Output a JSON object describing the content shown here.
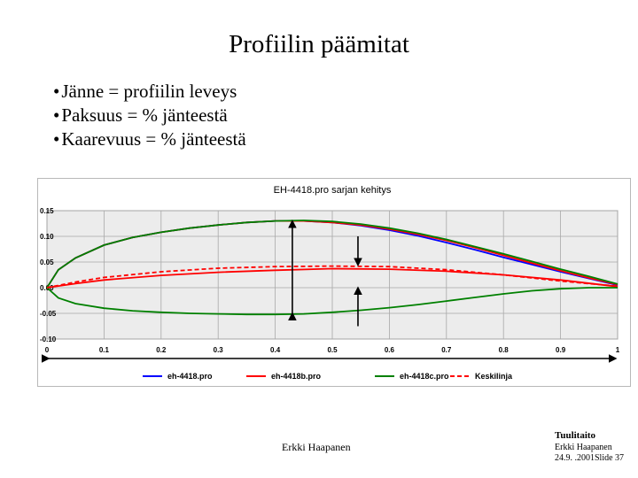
{
  "slide": {
    "title": "Profiilin päämitat",
    "bullets": [
      "Jänne = profiilin leveys",
      "Paksuus = % jänteestä",
      "Kaarevuus = % jänteestä"
    ]
  },
  "chart_data": {
    "type": "line",
    "title": "EH-4418.pro sarjan kehitys",
    "xlabel": "",
    "ylabel": "",
    "xlim": [
      0,
      1
    ],
    "ylim": [
      -0.1,
      0.15
    ],
    "x_ticks": [
      "0",
      "0.1",
      "0.2",
      "0.3",
      "0.4",
      "0.5",
      "0.6",
      "0.7",
      "0.8",
      "0.9",
      "1"
    ],
    "y_ticks": [
      "0.15",
      "0.10",
      "0.05",
      "0.00",
      "-0.05",
      "-0.10"
    ],
    "grid": true,
    "legend_position": "bottom",
    "series": [
      {
        "name": "eh-4418.pro",
        "color": "#0000ff",
        "style": "solid",
        "upper": [
          [
            0,
            0
          ],
          [
            0.02,
            0.035
          ],
          [
            0.05,
            0.058
          ],
          [
            0.1,
            0.083
          ],
          [
            0.15,
            0.098
          ],
          [
            0.2,
            0.108
          ],
          [
            0.25,
            0.116
          ],
          [
            0.3,
            0.122
          ],
          [
            0.35,
            0.127
          ],
          [
            0.4,
            0.13
          ],
          [
            0.45,
            0.13
          ],
          [
            0.5,
            0.127
          ],
          [
            0.55,
            0.121
          ],
          [
            0.6,
            0.112
          ],
          [
            0.65,
            0.101
          ],
          [
            0.7,
            0.088
          ],
          [
            0.75,
            0.074
          ],
          [
            0.8,
            0.059
          ],
          [
            0.85,
            0.045
          ],
          [
            0.9,
            0.031
          ],
          [
            0.95,
            0.018
          ],
          [
            1,
            0.005
          ]
        ]
      },
      {
        "name": "eh-4418b.pro",
        "color": "#ff0000",
        "style": "solid",
        "upper": [
          [
            0,
            0
          ],
          [
            0.02,
            0.035
          ],
          [
            0.05,
            0.058
          ],
          [
            0.1,
            0.083
          ],
          [
            0.15,
            0.098
          ],
          [
            0.2,
            0.108
          ],
          [
            0.25,
            0.116
          ],
          [
            0.3,
            0.122
          ],
          [
            0.35,
            0.127
          ],
          [
            0.4,
            0.13
          ],
          [
            0.45,
            0.13
          ],
          [
            0.5,
            0.127
          ],
          [
            0.55,
            0.122
          ],
          [
            0.6,
            0.114
          ],
          [
            0.65,
            0.104
          ],
          [
            0.7,
            0.092
          ],
          [
            0.75,
            0.078
          ],
          [
            0.8,
            0.063
          ],
          [
            0.85,
            0.048
          ],
          [
            0.9,
            0.033
          ],
          [
            0.95,
            0.019
          ],
          [
            1,
            0.006
          ]
        ],
        "camber": [
          [
            0,
            0
          ],
          [
            0.05,
            0.008
          ],
          [
            0.1,
            0.015
          ],
          [
            0.2,
            0.024
          ],
          [
            0.3,
            0.03
          ],
          [
            0.4,
            0.034
          ],
          [
            0.5,
            0.037
          ],
          [
            0.6,
            0.036
          ],
          [
            0.7,
            0.032
          ],
          [
            0.8,
            0.025
          ],
          [
            0.9,
            0.015
          ],
          [
            1,
            0.002
          ]
        ]
      },
      {
        "name": "eh-4418c.pro",
        "color": "#008000",
        "style": "solid",
        "upper": [
          [
            0,
            0
          ],
          [
            0.02,
            0.035
          ],
          [
            0.05,
            0.058
          ],
          [
            0.1,
            0.083
          ],
          [
            0.15,
            0.098
          ],
          [
            0.2,
            0.108
          ],
          [
            0.25,
            0.116
          ],
          [
            0.3,
            0.122
          ],
          [
            0.35,
            0.127
          ],
          [
            0.4,
            0.13
          ],
          [
            0.45,
            0.131
          ],
          [
            0.5,
            0.129
          ],
          [
            0.55,
            0.124
          ],
          [
            0.6,
            0.116
          ],
          [
            0.65,
            0.106
          ],
          [
            0.7,
            0.094
          ],
          [
            0.75,
            0.08
          ],
          [
            0.8,
            0.066
          ],
          [
            0.85,
            0.051
          ],
          [
            0.9,
            0.036
          ],
          [
            0.95,
            0.022
          ],
          [
            1,
            0.007
          ]
        ],
        "lower": [
          [
            0,
            0
          ],
          [
            0.02,
            -0.02
          ],
          [
            0.05,
            -0.031
          ],
          [
            0.1,
            -0.04
          ],
          [
            0.15,
            -0.045
          ],
          [
            0.2,
            -0.048
          ],
          [
            0.25,
            -0.05
          ],
          [
            0.3,
            -0.051
          ],
          [
            0.35,
            -0.052
          ],
          [
            0.4,
            -0.052
          ],
          [
            0.45,
            -0.051
          ],
          [
            0.5,
            -0.048
          ],
          [
            0.55,
            -0.044
          ],
          [
            0.6,
            -0.039
          ],
          [
            0.65,
            -0.033
          ],
          [
            0.7,
            -0.026
          ],
          [
            0.75,
            -0.019
          ],
          [
            0.8,
            -0.012
          ],
          [
            0.85,
            -0.006
          ],
          [
            0.9,
            -0.002
          ],
          [
            0.95,
            0.0
          ],
          [
            1,
            0.0
          ]
        ]
      },
      {
        "name": "Keskilinja",
        "color": "#ff0000",
        "style": "dashed",
        "points": [
          [
            0,
            0
          ],
          [
            0.05,
            0.011
          ],
          [
            0.1,
            0.02
          ],
          [
            0.2,
            0.031
          ],
          [
            0.3,
            0.038
          ],
          [
            0.4,
            0.041
          ],
          [
            0.5,
            0.042
          ],
          [
            0.6,
            0.041
          ],
          [
            0.7,
            0.035
          ],
          [
            0.8,
            0.025
          ],
          [
            0.9,
            0.013
          ],
          [
            1,
            0.003
          ]
        ]
      }
    ]
  },
  "footer": {
    "center": "Erkki Haapanen",
    "org": "Tuulitaito",
    "author": "Erkki Haapanen",
    "date_slide": "24.9. .2001Slide 37"
  }
}
